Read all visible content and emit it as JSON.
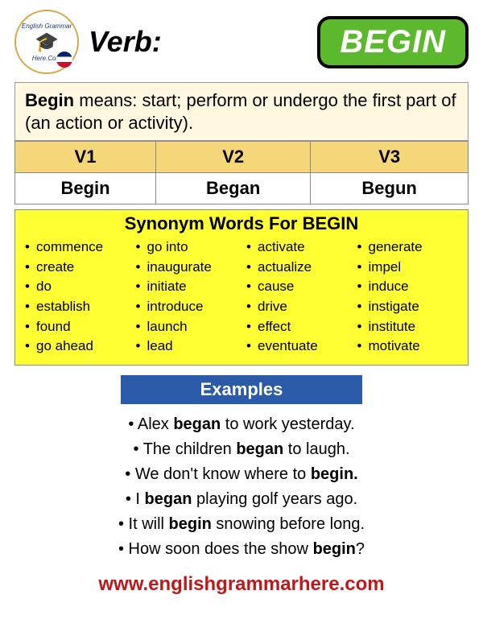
{
  "logo": {
    "top_text": "English Grammar",
    "bottom_text": "Here.Com"
  },
  "header": {
    "label": "Verb:",
    "word": "BEGIN"
  },
  "definition": {
    "word": "Begin",
    "text": " means: start; perform or undergo the first part of (an action or activity)."
  },
  "forms": {
    "headers": [
      "V1",
      "V2",
      "V3"
    ],
    "values": [
      "Begin",
      "Began",
      "Begun"
    ],
    "header_bg": "#f5d77a"
  },
  "synonyms": {
    "title": "Synonym Words For BEGIN",
    "background": "#ffff33",
    "columns": [
      [
        "commence",
        "create",
        "do",
        "establish",
        "found",
        "go ahead"
      ],
      [
        "go into",
        "inaugurate",
        "initiate",
        "introduce",
        "launch",
        "lead"
      ],
      [
        "activate",
        "actualize",
        "cause",
        "drive",
        "effect",
        "eventuate"
      ],
      [
        "generate",
        "impel",
        "induce",
        "instigate",
        "institute",
        "motivate"
      ]
    ]
  },
  "examples": {
    "header": "Examples",
    "header_bg": "#2a5aa8",
    "items": [
      {
        "pre": "Alex ",
        "bold": "began",
        "post": " to work yesterday."
      },
      {
        "pre": "The children ",
        "bold": "began",
        "post": " to laugh."
      },
      {
        "pre": "We don't know where to ",
        "bold": "begin.",
        "post": ""
      },
      {
        "pre": "I ",
        "bold": "began",
        "post": " playing golf years ago."
      },
      {
        "pre": "It will ",
        "bold": "begin",
        "post": " snowing before long."
      },
      {
        "pre": "How soon does the show ",
        "bold": "begin",
        "post": "?"
      }
    ]
  },
  "footer": {
    "url": "www.englishgrammarhere.com",
    "color": "#c01818"
  }
}
